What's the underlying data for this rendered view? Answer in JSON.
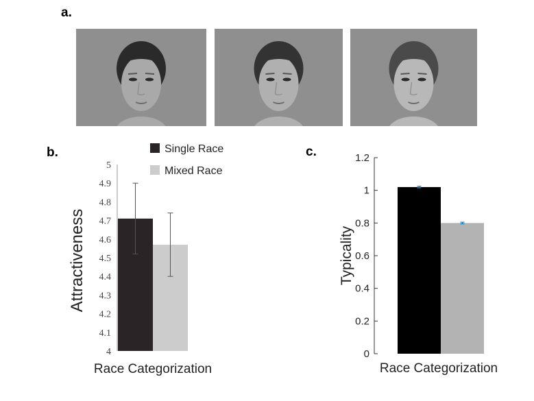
{
  "panel_labels": {
    "a": "a.",
    "b": "b.",
    "c": "c."
  },
  "faces": [
    {
      "name": "face-asian",
      "skin": "#a9a9a9",
      "hair": "#2a2a2a"
    },
    {
      "name": "face-mixed",
      "skin": "#b0b0b0",
      "hair": "#333333"
    },
    {
      "name": "face-caucasian",
      "skin": "#b8b8b8",
      "hair": "#4a4a4a"
    }
  ],
  "chart_data": [
    {
      "type": "bar",
      "panel": "b",
      "categories": [
        "Single Race",
        "Mixed Race"
      ],
      "values": [
        4.71,
        4.57
      ],
      "errors": [
        [
          4.52,
          4.9
        ],
        [
          4.4,
          4.74
        ]
      ],
      "colors": [
        "#2b2426",
        "#cccccc"
      ],
      "xlabel": "Race Categorization",
      "ylabel": "Attractiveness",
      "ylim": [
        4,
        5
      ],
      "yticks": [
        "4",
        "4.1",
        "4.2",
        "4.3",
        "4.4",
        "4.5",
        "4.6",
        "4.7",
        "4.8",
        "4.9",
        "5"
      ],
      "legend": [
        "Single Race",
        "Mixed Race"
      ],
      "legend_position": "top"
    },
    {
      "type": "bar",
      "panel": "c",
      "categories": [
        "Single Race",
        "Mixed Race"
      ],
      "values": [
        1.02,
        0.8
      ],
      "errors": [
        [
          1.015,
          1.025
        ],
        [
          0.795,
          0.805
        ]
      ],
      "colors": [
        "#000000",
        "#b3b3b3"
      ],
      "xlabel": "Race Categorization",
      "ylabel": "Typicality",
      "ylim": [
        0,
        1.2
      ],
      "yticks": [
        "0",
        "0.2",
        "0.4",
        "0.6",
        "0.8",
        "1",
        "1.2"
      ]
    }
  ]
}
